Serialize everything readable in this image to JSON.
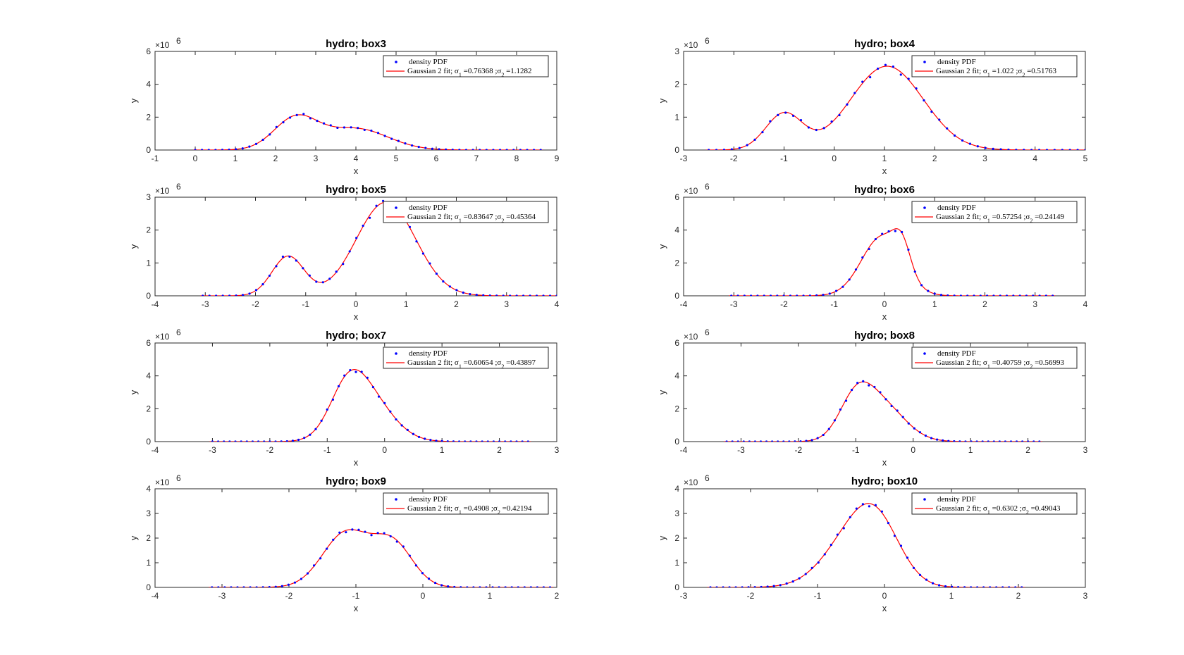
{
  "chart_data": [
    {
      "type": "scatter",
      "title": "hydro; box3",
      "xlabel": "x",
      "ylabel": "y",
      "multiplier": "×10",
      "multiplier_exp": "6",
      "xlim": [
        -1,
        9
      ],
      "ylim": [
        0,
        6
      ],
      "xticks": [
        -1,
        0,
        1,
        2,
        3,
        4,
        5,
        6,
        7,
        8,
        9
      ],
      "yticks": [
        0,
        2,
        4,
        6
      ],
      "grid": false,
      "legend_position": "top-right",
      "fit": {
        "components": [
          [
            1.9,
            2.5,
            0.76368
          ],
          [
            1.3,
            4.0,
            1.1282
          ]
        ]
      },
      "data_range": [
        0.0,
        8.6
      ],
      "points": 52,
      "series": [
        {
          "name": "density PDF",
          "color": "#0000ff",
          "marker": "dot"
        },
        {
          "name": "Gaussian 2 fit; σ₁ =0.76368 ;σ₂ =1.1282",
          "color": "#ff0000",
          "marker": "line"
        }
      ],
      "legend": {
        "data_label": "density PDF",
        "fit_prefix": "Gaussian 2 fit; ",
        "s1_label": "σ",
        "s1_sub": "1",
        "s1_val": " =0.76368",
        "s2_label": " ;σ",
        "s2_sub": "2",
        "s2_val": " =1.1282"
      }
    },
    {
      "type": "scatter",
      "title": "hydro; box4",
      "xlabel": "x",
      "ylabel": "y",
      "multiplier": "×10",
      "multiplier_exp": "6",
      "xlim": [
        -3,
        5
      ],
      "ylim": [
        0,
        3
      ],
      "xticks": [
        -3,
        -2,
        -1,
        0,
        1,
        2,
        3,
        4,
        5
      ],
      "yticks": [
        0,
        1,
        2,
        3
      ],
      "grid": false,
      "legend_position": "top-right",
      "fit": {
        "components": [
          [
            1.1,
            -1.0,
            0.51763
          ],
          [
            2.55,
            1.05,
            1.022
          ]
        ]
      },
      "data_range": [
        -2.5,
        5.0
      ],
      "points": 50,
      "series": [
        {
          "name": "density PDF",
          "color": "#0000ff",
          "marker": "dot"
        },
        {
          "name": "Gaussian 2 fit; σ₁ =1.022 ;σ₂ =0.51763",
          "color": "#ff0000",
          "marker": "line"
        }
      ],
      "legend": {
        "data_label": "density PDF",
        "fit_prefix": "Gaussian 2 fit; ",
        "s1_label": "σ",
        "s1_sub": "1",
        "s1_val": " =1.022",
        "s2_label": " ;σ",
        "s2_sub": "2",
        "s2_val": " =0.51763"
      }
    },
    {
      "type": "scatter",
      "title": "hydro; box5",
      "xlabel": "x",
      "ylabel": "y",
      "multiplier": "×10",
      "multiplier_exp": "6",
      "xlim": [
        -4,
        4
      ],
      "ylim": [
        0,
        3
      ],
      "xticks": [
        -4,
        -3,
        -2,
        -1,
        0,
        1,
        2,
        3,
        4
      ],
      "yticks": [
        0,
        1,
        2,
        3
      ],
      "grid": false,
      "legend_position": "top-right",
      "fit": {
        "components": [
          [
            1.2,
            -1.35,
            0.45364
          ],
          [
            2.85,
            0.6,
            0.83647
          ]
        ]
      },
      "data_range": [
        -3.05,
        4.0
      ],
      "points": 54,
      "series": [
        {
          "name": "density PDF",
          "color": "#0000ff",
          "marker": "dot"
        },
        {
          "name": "Gaussian 2 fit; σ₁ =0.83647 ;σ₂ =0.45364",
          "color": "#ff0000",
          "marker": "line"
        }
      ],
      "legend": {
        "data_label": "density PDF",
        "fit_prefix": "Gaussian 2 fit; ",
        "s1_label": "σ",
        "s1_sub": "1",
        "s1_val": " =0.83647",
        "s2_label": " ;σ",
        "s2_sub": "2",
        "s2_val": " =0.45364"
      }
    },
    {
      "type": "scatter",
      "title": "hydro; box6",
      "xlabel": "x",
      "ylabel": "y",
      "multiplier": "×10",
      "multiplier_exp": "6",
      "xlim": [
        -4,
        4
      ],
      "ylim": [
        0,
        6
      ],
      "xticks": [
        -4,
        -3,
        -2,
        -1,
        0,
        1,
        2,
        3,
        4
      ],
      "yticks": [
        0,
        2,
        4,
        6
      ],
      "grid": false,
      "legend_position": "top-right",
      "fit": {
        "components": [
          [
            3.6,
            -0.05,
            0.57254
          ],
          [
            1.6,
            0.35,
            0.24149
          ]
        ]
      },
      "data_range": [
        -3.05,
        3.35
      ],
      "points": 50,
      "series": [
        {
          "name": "density PDF",
          "color": "#0000ff",
          "marker": "dot"
        },
        {
          "name": "Gaussian 2 fit; σ₁ =0.57254 ;σ₂ =0.24149",
          "color": "#ff0000",
          "marker": "line"
        }
      ],
      "legend": {
        "data_label": "density PDF",
        "fit_prefix": "Gaussian 2 fit; ",
        "s1_label": "σ",
        "s1_sub": "1",
        "s1_val": " =0.57254",
        "s2_label": " ;σ",
        "s2_sub": "2",
        "s2_val": " =0.24149"
      }
    },
    {
      "type": "scatter",
      "title": "hydro; box7",
      "xlabel": "x",
      "ylabel": "y",
      "multiplier": "×10",
      "multiplier_exp": "6",
      "xlim": [
        -4,
        3
      ],
      "ylim": [
        0,
        6
      ],
      "xticks": [
        -4,
        -3,
        -2,
        -1,
        0,
        1,
        2,
        3
      ],
      "yticks": [
        0,
        2,
        4,
        6
      ],
      "grid": false,
      "legend_position": "top-right",
      "fit": {
        "components": [
          [
            2.3,
            -0.65,
            0.43897
          ],
          [
            2.6,
            -0.3,
            0.60654
          ]
        ]
      },
      "data_range": [
        -3.0,
        2.5
      ],
      "points": 56,
      "series": [
        {
          "name": "density PDF",
          "color": "#0000ff",
          "marker": "dot"
        },
        {
          "name": "Gaussian 2 fit; σ₁ =0.60654 ;σ₂ =0.43897",
          "color": "#ff0000",
          "marker": "line"
        }
      ],
      "legend": {
        "data_label": "density PDF",
        "fit_prefix": "Gaussian 2 fit; ",
        "s1_label": "σ",
        "s1_sub": "1",
        "s1_val": " =0.60654",
        "s2_label": " ;σ",
        "s2_sub": "2",
        "s2_val": " =0.43897"
      }
    },
    {
      "type": "scatter",
      "title": "hydro; box8",
      "xlabel": "x",
      "ylabel": "y",
      "multiplier": "×10",
      "multiplier_exp": "6",
      "xlim": [
        -4,
        3
      ],
      "ylim": [
        0,
        6
      ],
      "xticks": [
        -4,
        -3,
        -2,
        -1,
        0,
        1,
        2,
        3
      ],
      "yticks": [
        0,
        2,
        4,
        6
      ],
      "grid": false,
      "legend_position": "top-right",
      "fit": {
        "components": [
          [
            2.25,
            -1.0,
            0.40759
          ],
          [
            2.2,
            -0.55,
            0.56993
          ]
        ]
      },
      "data_range": [
        -3.25,
        2.2
      ],
      "points": 56,
      "series": [
        {
          "name": "density PDF",
          "color": "#0000ff",
          "marker": "dot"
        },
        {
          "name": "Gaussian 2 fit; σ₁ =0.40759 ;σ₂ =0.56993",
          "color": "#ff0000",
          "marker": "line"
        }
      ],
      "legend": {
        "data_label": "density PDF",
        "fit_prefix": "Gaussian 2 fit; ",
        "s1_label": "σ",
        "s1_sub": "1",
        "s1_val": " =0.40759",
        "s2_label": " ;σ",
        "s2_sub": "2",
        "s2_val": " =0.56993"
      }
    },
    {
      "type": "scatter",
      "title": "hydro; box9",
      "xlabel": "x",
      "ylabel": "y",
      "multiplier": "×10",
      "multiplier_exp": "6",
      "xlim": [
        -4,
        2
      ],
      "ylim": [
        0,
        4
      ],
      "xticks": [
        -4,
        -3,
        -2,
        -1,
        0,
        1,
        2
      ],
      "yticks": [
        0,
        1,
        2,
        3,
        4
      ],
      "grid": false,
      "legend_position": "top-right",
      "fit": {
        "components": [
          [
            2.2,
            -1.15,
            0.4908
          ],
          [
            1.75,
            -0.45,
            0.42194
          ]
        ]
      },
      "data_range": [
        -3.15,
        1.9
      ],
      "points": 54,
      "series": [
        {
          "name": "density PDF",
          "color": "#0000ff",
          "marker": "dot"
        },
        {
          "name": "Gaussian 2 fit; σ₁ =0.4908 ;σ₂ =0.42194",
          "color": "#ff0000",
          "marker": "line"
        }
      ],
      "legend": {
        "data_label": "density PDF",
        "fit_prefix": "Gaussian 2 fit; ",
        "s1_label": "σ",
        "s1_sub": "1",
        "s1_val": " =0.4908",
        "s2_label": " ;σ",
        "s2_sub": "2",
        "s2_val": " =0.42194"
      }
    },
    {
      "type": "scatter",
      "title": "hydro; box10",
      "xlabel": "x",
      "ylabel": "y",
      "multiplier": "×10",
      "multiplier_exp": "6",
      "xlim": [
        -3,
        3
      ],
      "ylim": [
        0,
        4
      ],
      "xticks": [
        -3,
        -2,
        -1,
        0,
        1,
        2,
        3
      ],
      "yticks": [
        0,
        1,
        2,
        3,
        4
      ],
      "grid": false,
      "legend_position": "top-right",
      "fit": {
        "components": [
          [
            2.0,
            -0.45,
            0.6302
          ],
          [
            1.75,
            -0.1,
            0.49043
          ]
        ]
      },
      "data_range": [
        -2.6,
        2.05
      ],
      "points": 50,
      "series": [
        {
          "name": "density PDF",
          "color": "#0000ff",
          "marker": "dot"
        },
        {
          "name": "Gaussian 2 fit; σ₁ =0.6302 ;σ₂ =0.49043",
          "color": "#ff0000",
          "marker": "line"
        }
      ],
      "legend": {
        "data_label": "density PDF",
        "fit_prefix": "Gaussian 2 fit; ",
        "s1_label": "σ",
        "s1_sub": "1",
        "s1_val": " =0.6302",
        "s2_label": " ;σ",
        "s2_sub": "2",
        "s2_val": " =0.49043"
      }
    }
  ]
}
